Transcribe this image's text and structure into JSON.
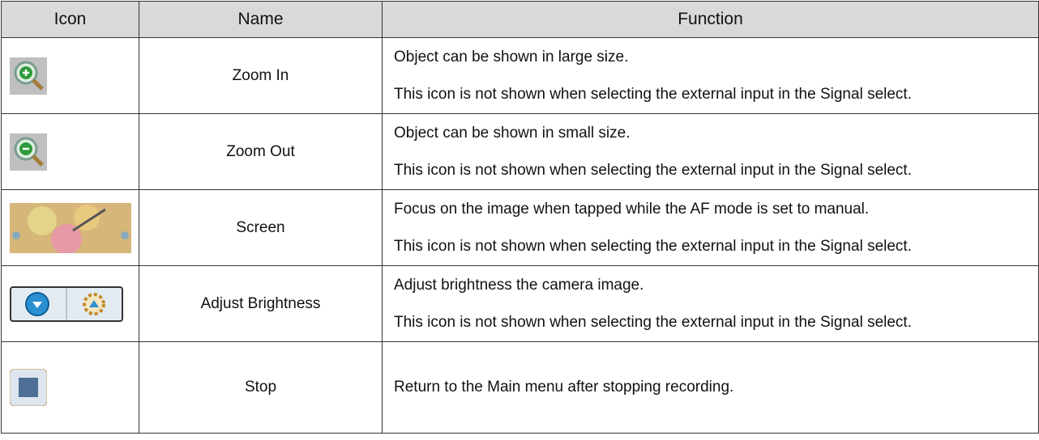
{
  "table": {
    "header": [
      "Icon",
      "Name",
      "Function"
    ],
    "rows": [
      {
        "name": "Zoom In",
        "function": [
          "Object can be shown in large size.",
          "This icon is not shown when selecting the external input in the Signal select."
        ]
      },
      {
        "name": "Zoom Out",
        "function": [
          "Object can be shown in small size.",
          "This icon is not shown when selecting the external input in the Signal select."
        ]
      },
      {
        "name": "Screen",
        "function": [
          "Focus on the image when tapped while the AF mode is set to manual.",
          "This icon is not shown when selecting the external input in the Signal select."
        ]
      },
      {
        "name": "Adjust Brightness",
        "function": [
          "Adjust brightness the camera image.",
          "This icon is not shown when selecting the external input in the Signal select."
        ]
      },
      {
        "name": "Stop",
        "function": [
          "Return to the Main menu after stopping recording."
        ]
      }
    ]
  }
}
